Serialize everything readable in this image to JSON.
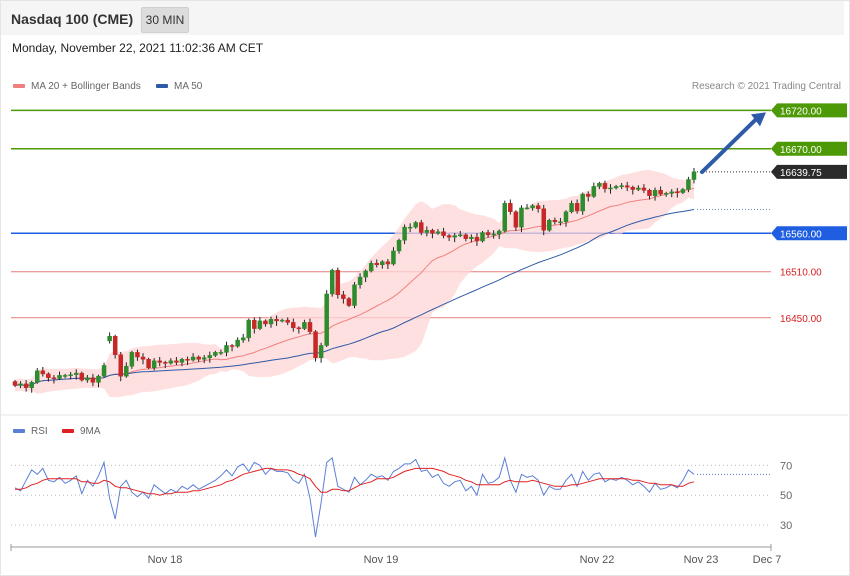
{
  "header": {
    "title": "Nasdaq 100 (CME)",
    "timeframe": "30 MIN",
    "datetime": "Monday, November 22, 2021 11:02:36 AM CET"
  },
  "legend": {
    "ma20": "MA 20 + Bollinger Bands",
    "ma50": "MA 50",
    "rsi": "RSI",
    "ma9": "9MA",
    "credit": "Research © 2021 Trading Central"
  },
  "colors": {
    "up": "#2e8b2e",
    "down": "#c62828",
    "ma20": "#f08080",
    "ma50": "#2f5aa8",
    "bands": "#ffd6d6",
    "resistance": "#4e9a06",
    "support_blue": "#1f5ee0",
    "support_red": "#e05555",
    "rsi": "#5b7fd6",
    "rsi_ma": "#e02020"
  },
  "chart_data": {
    "type": "candlestick",
    "price_axis": {
      "ylim": [
        16330,
        16740
      ]
    },
    "x_ticks": [
      "Nov 18",
      "Nov 19",
      "Nov 22",
      "Nov 23",
      "Dec 7"
    ],
    "last_price": "16639.75",
    "levels": [
      {
        "label": "16720.00",
        "value": 16720,
        "kind": "resistance"
      },
      {
        "label": "16670.00",
        "value": 16670,
        "kind": "resistance"
      },
      {
        "label": "16560.00",
        "value": 16560,
        "kind": "pivot"
      },
      {
        "label": "16510.00",
        "value": 16510,
        "kind": "support"
      },
      {
        "label": "16450.00",
        "value": 16450,
        "kind": "support"
      }
    ],
    "forecast_arrow": {
      "from": 16639.75,
      "to": 16720
    },
    "closes": [
      16362,
      16364,
      16359,
      16366,
      16381,
      16377,
      16372,
      16371,
      16375,
      16375,
      16376,
      16378,
      16369,
      16372,
      16366,
      16374,
      16388,
      16426,
      16402,
      16374,
      16387,
      16405,
      16399,
      16396,
      16385,
      16394,
      16392,
      16391,
      16394,
      16392,
      16396,
      16395,
      16399,
      16396,
      16398,
      16401,
      16405,
      16405,
      16414,
      16413,
      16421,
      16424,
      16447,
      16436,
      16446,
      16442,
      16448,
      16446,
      16447,
      16444,
      16437,
      16436,
      16444,
      16432,
      16398,
      16414,
      16481,
      16512,
      16480,
      16475,
      16466,
      16493,
      16503,
      16511,
      16521,
      16519,
      16523,
      16520,
      16537,
      16551,
      16568,
      16568,
      16574,
      16561,
      16564,
      16560,
      16562,
      16557,
      16555,
      16557,
      16558,
      16553,
      16555,
      16550,
      16561,
      16558,
      16559,
      16563,
      16599,
      16588,
      16568,
      16593,
      16593,
      16596,
      16592,
      16564,
      16577,
      16575,
      16575,
      16588,
      16599,
      16589,
      16611,
      16608,
      16621,
      16625,
      16618,
      16619,
      16621,
      16622,
      16620,
      16617,
      16619,
      16616,
      16609,
      16616,
      16611,
      16612,
      16614,
      16613,
      16617,
      16630,
      16640
    ],
    "opens": [
      16367,
      16362,
      16364,
      16359,
      16366,
      16381,
      16377,
      16372,
      16371,
      16375,
      16375,
      16376,
      16378,
      16369,
      16372,
      16366,
      16374,
      16420,
      16426,
      16402,
      16374,
      16387,
      16405,
      16399,
      16396,
      16385,
      16394,
      16392,
      16391,
      16394,
      16392,
      16396,
      16395,
      16399,
      16396,
      16398,
      16401,
      16405,
      16405,
      16414,
      16413,
      16421,
      16424,
      16447,
      16436,
      16446,
      16442,
      16448,
      16446,
      16447,
      16444,
      16437,
      16436,
      16444,
      16432,
      16398,
      16414,
      16481,
      16512,
      16480,
      16475,
      16466,
      16493,
      16503,
      16511,
      16521,
      16519,
      16523,
      16520,
      16537,
      16551,
      16568,
      16568,
      16574,
      16561,
      16564,
      16560,
      16562,
      16557,
      16555,
      16557,
      16558,
      16553,
      16555,
      16550,
      16561,
      16558,
      16559,
      16563,
      16599,
      16588,
      16568,
      16593,
      16593,
      16596,
      16592,
      16564,
      16577,
      16575,
      16575,
      16588,
      16599,
      16589,
      16611,
      16608,
      16621,
      16625,
      16618,
      16619,
      16621,
      16622,
      16620,
      16617,
      16619,
      16616,
      16609,
      16616,
      16611,
      16612,
      16614,
      16613,
      16617,
      16630
    ],
    "rsi": {
      "ylim": [
        20,
        85
      ],
      "ticks": [
        "70",
        "50",
        "30"
      ],
      "values": [
        55,
        53,
        60,
        67,
        64,
        68,
        60,
        59,
        62,
        58,
        60,
        63,
        51,
        60,
        56,
        63,
        72,
        48,
        34,
        56,
        60,
        52,
        49,
        52,
        48,
        57,
        54,
        51,
        54,
        52,
        56,
        54,
        57,
        54,
        56,
        58,
        60,
        63,
        67,
        63,
        69,
        71,
        66,
        72,
        70,
        64,
        68,
        66,
        66,
        65,
        60,
        58,
        64,
        48,
        22,
        45,
        72,
        75,
        56,
        54,
        52,
        62,
        57,
        60,
        64,
        62,
        63,
        60,
        66,
        68,
        71,
        71,
        74,
        66,
        67,
        62,
        64,
        58,
        56,
        59,
        60,
        53,
        56,
        50,
        64,
        58,
        59,
        62,
        75,
        60,
        52,
        64,
        62,
        63,
        60,
        50,
        56,
        54,
        54,
        60,
        64,
        56,
        66,
        60,
        64,
        65,
        59,
        61,
        60,
        62,
        60,
        57,
        59,
        56,
        52,
        58,
        54,
        55,
        57,
        55,
        60,
        67,
        64
      ],
      "ma": [
        54,
        54,
        55,
        57,
        58,
        60,
        61,
        61,
        61,
        61,
        61,
        61,
        59,
        59,
        58,
        58,
        60,
        59,
        56,
        55,
        55,
        54,
        53,
        52,
        51,
        51,
        50,
        51,
        51,
        52,
        52,
        52,
        53,
        53,
        54,
        55,
        56,
        57,
        59,
        60,
        62,
        64,
        65,
        66,
        67,
        68,
        68,
        67,
        67,
        67,
        66,
        64,
        63,
        61,
        56,
        52,
        52,
        54,
        54,
        53,
        53,
        55,
        57,
        58,
        59,
        61,
        61,
        61,
        62,
        64,
        66,
        67,
        68,
        68,
        68,
        68,
        67,
        66,
        64,
        63,
        62,
        60,
        59,
        57,
        57,
        57,
        57,
        57,
        59,
        60,
        59,
        59,
        59,
        60,
        59,
        58,
        57,
        56,
        56,
        56,
        57,
        57,
        58,
        59,
        60,
        61,
        61,
        61,
        61,
        61,
        61,
        60,
        60,
        59,
        58,
        58,
        57,
        57,
        57,
        56,
        56,
        58,
        59
      ]
    }
  }
}
